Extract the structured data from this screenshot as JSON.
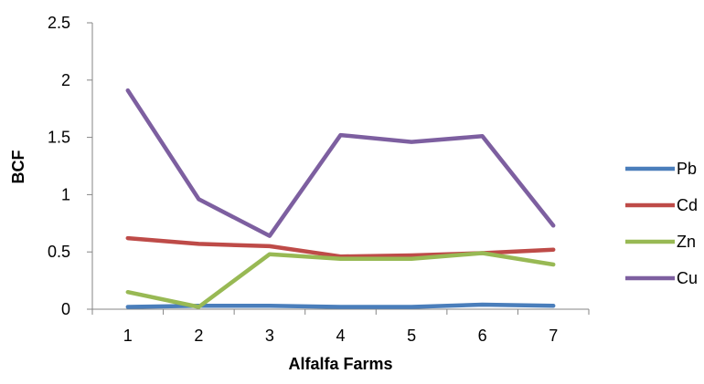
{
  "chart_data": {
    "type": "line",
    "title": "",
    "xlabel": "Alfalfa Farms",
    "ylabel": "BCF",
    "categories": [
      "1",
      "2",
      "3",
      "4",
      "5",
      "6",
      "7"
    ],
    "ylim": [
      0,
      2.5
    ],
    "yticks": [
      "0",
      "0.5",
      "1",
      "1.5",
      "2",
      "2.5"
    ],
    "grid": false,
    "legend_position": "right",
    "series": [
      {
        "name": "Pb",
        "color": "#4a7ebb",
        "values": [
          0.02,
          0.03,
          0.03,
          0.02,
          0.02,
          0.04,
          0.03
        ]
      },
      {
        "name": "Cd",
        "color": "#be4b48",
        "values": [
          0.62,
          0.57,
          0.55,
          0.46,
          0.47,
          0.49,
          0.52
        ]
      },
      {
        "name": "Zn",
        "color": "#98b954",
        "values": [
          0.15,
          0.02,
          0.48,
          0.44,
          0.44,
          0.49,
          0.39
        ]
      },
      {
        "name": "Cu",
        "color": "#7d5fa0",
        "values": [
          1.91,
          0.96,
          0.64,
          1.52,
          1.46,
          1.51,
          0.73
        ]
      }
    ]
  }
}
